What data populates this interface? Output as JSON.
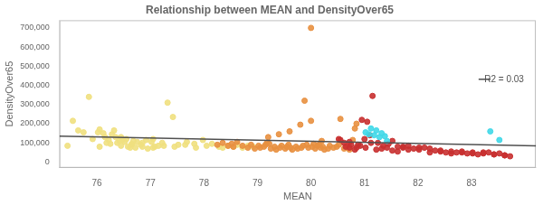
{
  "chart_data": {
    "type": "scatter",
    "title": "Relationship between MEAN and DensityOver65",
    "xlabel": "MEAN",
    "ylabel": "DensityOver65",
    "annotations": [
      {
        "text": "R2 = 0.03"
      }
    ],
    "xlim": [
      75.3,
      84.2
    ],
    "ylim": [
      -30000,
      740000
    ],
    "xticks": [
      76,
      77,
      78,
      79,
      80,
      81,
      82,
      83
    ],
    "yticks": [
      0,
      {
        "value": 100000,
        "label": "100,000"
      },
      {
        "value": 200000,
        "label": "200,000"
      },
      {
        "value": 300000,
        "label": "300,000"
      },
      {
        "value": 400000,
        "label": "400,000"
      },
      {
        "value": 500000,
        "label": "500,000"
      },
      {
        "value": 600000,
        "label": "600,000"
      },
      {
        "value": 700000,
        "label": "700,000"
      }
    ],
    "grid": false,
    "series": [
      {
        "color": "#f0e080",
        "x": [
          75.45,
          75.55,
          75.65,
          75.75,
          75.85,
          75.92,
          76.02,
          76.05,
          76.12,
          76.15,
          76.18,
          76.22,
          76.28,
          76.32,
          76.35,
          76.38,
          76.42,
          76.45,
          76.48,
          76.52,
          76.55,
          76.58,
          76.62,
          76.65,
          76.68,
          76.72,
          76.75,
          76.82,
          76.85,
          76.92,
          76.95,
          77.02,
          77.05,
          77.08,
          77.15,
          77.22,
          77.32,
          77.42,
          77.52,
          77.68,
          77.82,
          77.98,
          76.05,
          76.25,
          76.45,
          76.65,
          76.85,
          77.05,
          77.25,
          77.45,
          77.65,
          77.85,
          78.05,
          78.15,
          78.28,
          78.35,
          78.45,
          78.55,
          78.62,
          78.72,
          78.82,
          78.92
        ],
        "values": [
          85000,
          215000,
          165000,
          155000,
          340000,
          120000,
          155000,
          170000,
          150000,
          130000,
          100000,
          115000,
          145000,
          165000,
          130000,
          100000,
          110000,
          130000,
          115000,
          105000,
          120000,
          80000,
          75000,
          95000,
          110000,
          75000,
          105000,
          90000,
          100000,
          115000,
          70000,
          105000,
          120000,
          80000,
          85000,
          100000,
          310000,
          235000,
          90000,
          105000,
          95000,
          115000,
          80000,
          95000,
          85000,
          90000,
          80000,
          75000,
          85000,
          80000,
          90000,
          75000,
          85000,
          95000,
          80000,
          75000,
          85000,
          80000,
          90000,
          75000,
          85000,
          80000
        ]
      },
      {
        "color": "#e89040",
        "x": [
          78.25,
          78.35,
          78.45,
          78.52,
          78.55,
          78.62,
          78.72,
          78.82,
          78.88,
          78.95,
          79.02,
          79.05,
          79.12,
          79.15,
          79.18,
          79.22,
          79.25,
          79.32,
          79.35,
          79.42,
          79.45,
          79.52,
          79.55,
          79.58,
          79.62,
          79.65,
          79.72,
          79.75,
          79.82,
          79.85,
          79.88,
          79.92,
          79.95,
          80.0,
          80.02,
          80.05,
          80.08,
          80.12,
          80.15,
          80.18,
          80.22,
          80.25,
          80.32,
          80.35,
          80.42,
          80.48,
          80.52,
          80.55,
          80.62,
          80.68,
          80.72,
          80.78,
          80.82,
          80.85,
          79.2,
          79.4,
          79.6,
          79.8,
          80.0,
          80.2
        ],
        "values": [
          90000,
          100000,
          85000,
          95000,
          80000,
          105000,
          85000,
          75000,
          90000,
          70000,
          85000,
          75000,
          80000,
          90000,
          100000,
          95000,
          70000,
          80000,
          65000,
          75000,
          85000,
          70000,
          80000,
          90000,
          75000,
          65000,
          80000,
          70000,
          75000,
          85000,
          320000,
          90000,
          75000,
          700000,
          80000,
          95000,
          70000,
          85000,
          90000,
          75000,
          80000,
          65000,
          70000,
          85000,
          75000,
          80000,
          90000,
          225000,
          70000,
          80000,
          65000,
          115000,
          175000,
          200000,
          130000,
          145000,
          160000,
          195000,
          215000,
          110000
        ]
      },
      {
        "color": "#c83030",
        "x": [
          80.52,
          80.62,
          80.65,
          80.72,
          80.75,
          80.82,
          80.85,
          80.92,
          80.95,
          81.0,
          81.05,
          81.1,
          81.15,
          81.25,
          81.35,
          81.45,
          81.52,
          81.62,
          81.72,
          81.82,
          81.92,
          82.02,
          82.12,
          82.22,
          82.32,
          82.42,
          82.52,
          82.62,
          82.72,
          82.82,
          82.92,
          83.02,
          83.12,
          83.22,
          83.32,
          83.42,
          83.52,
          83.62,
          83.72,
          80.55,
          80.72,
          80.88,
          81.02,
          81.12,
          81.22,
          81.32,
          81.42,
          81.52,
          81.62,
          81.72,
          81.82,
          82.02,
          82.22,
          82.42,
          82.62,
          82.82,
          83.02,
          83.22,
          83.42,
          83.62
        ],
        "values": [
          120000,
          100000,
          80000,
          75000,
          90000,
          65000,
          75000,
          85000,
          220000,
          120000,
          210000,
          140000,
          345000,
          100000,
          85000,
          95000,
          110000,
          80000,
          75000,
          85000,
          70000,
          65000,
          75000,
          50000,
          60000,
          55000,
          50000,
          45000,
          50000,
          55000,
          45000,
          50000,
          40000,
          45000,
          50000,
          40000,
          45000,
          35000,
          30000,
          115000,
          105000,
          90000,
          75000,
          100000,
          65000,
          70000,
          75000,
          60000,
          55000,
          80000,
          65000,
          75000,
          70000,
          60000,
          55000,
          50000,
          45000,
          50000,
          40000,
          35000
        ]
      },
      {
        "color": "#40d8e8",
        "x": [
          81.02,
          81.08,
          81.12,
          81.18,
          81.22,
          81.28,
          81.32,
          81.38,
          81.42,
          83.35,
          83.52
        ],
        "values": [
          155000,
          145000,
          175000,
          140000,
          165000,
          130000,
          150000,
          135000,
          110000,
          160000,
          115000
        ]
      },
      {
        "type": "line",
        "color": "#505050",
        "x": [
          75.3,
          84.2
        ],
        "values": [
          135000,
          85000
        ]
      }
    ]
  }
}
